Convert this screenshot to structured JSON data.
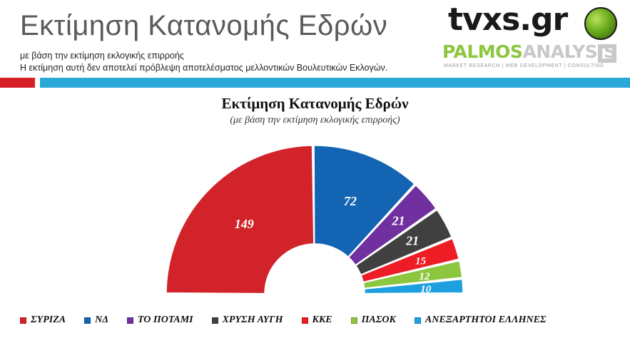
{
  "header": {
    "title": "Εκτίμηση Κατανομής Εδρών",
    "subtitle_line1": "με βάση την εκτίμηση εκλογικής επιρροής",
    "subtitle_line2": "Η εκτίμηση αυτή δεν αποτελεί πρόβλεψη αποτελέσματος μελλοντικών Βουλευτικών Εκλογών."
  },
  "logos": {
    "tvxs": "tvxs.gr",
    "palmos_part1": "PALMOS",
    "palmos_part2": "ANALYSIS",
    "tagline": "MARKET RESEARCH | WEB DEVELOPMENT | CONSULTING"
  },
  "colors": {
    "accent_red": "#d91f26",
    "accent_blue": "#2aa8d8"
  },
  "chart_data": {
    "type": "pie",
    "subtype": "parliament-semicircle",
    "title": "Εκτίμηση Κατανομής Εδρών",
    "subtitle": "(με βάση την εκτίμηση εκλογικής επιρροής)",
    "total_seats": 300,
    "legend_position": "bottom",
    "slices": [
      {
        "name": "ΣΥΡΙΖΑ",
        "value": 149,
        "color": "#d2232a"
      },
      {
        "name": "ΝΔ",
        "value": 72,
        "color": "#1464b4"
      },
      {
        "name": "ΤΟ ΠΟΤΑΜΙ",
        "value": 21,
        "color": "#7030a0"
      },
      {
        "name": "ΧΡΥΣΗ ΑΥΓΗ",
        "value": 21,
        "color": "#404040"
      },
      {
        "name": "ΚΚΕ",
        "value": 15,
        "color": "#ee1c25"
      },
      {
        "name": "ΠΑΣΟΚ",
        "value": 12,
        "color": "#8cc63f"
      },
      {
        "name": "ΑΝΕΞΑΡΤΗΤΟΙ ΕΛΛΗΝΕΣ",
        "value": 10,
        "color": "#1ea0e0"
      }
    ]
  }
}
